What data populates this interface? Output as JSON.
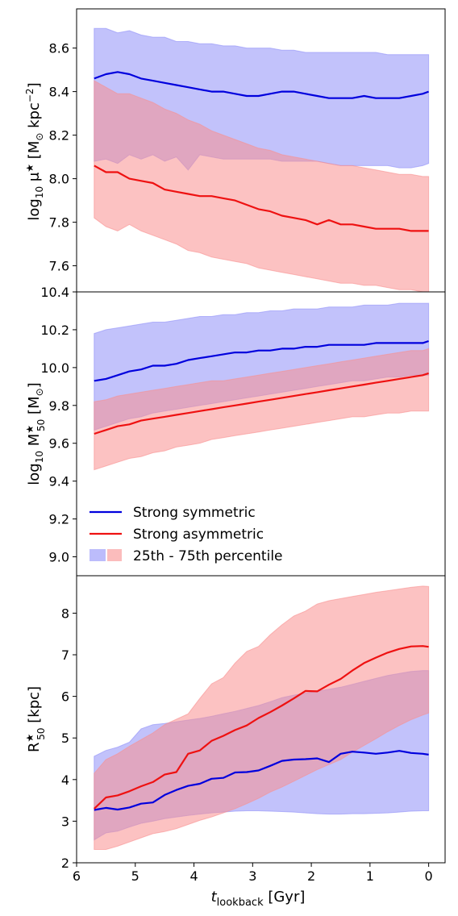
{
  "colors": {
    "symmetric": "#0000dd",
    "asymmetric": "#ee1111",
    "symmetric_band": "#8f8ff8",
    "asymmetric_band": "#f98f8f"
  },
  "legend": {
    "placement": "lower-left of middle panel",
    "entries": [
      "Strong symmetric",
      "Strong asymmetric"
    ],
    "band_label": "25th - 75th percentile"
  },
  "chart_data": [
    {
      "type": "line",
      "panel": "top",
      "ylabel": "log10 μ* [M⊙ kpc^-2]",
      "ylim": [
        7.48,
        8.78
      ],
      "yticks": [
        "7.6",
        "7.8",
        "8.0",
        "8.2",
        "8.4",
        "8.6"
      ],
      "x": [
        5.7,
        5.5,
        5.3,
        5.1,
        4.9,
        4.7,
        4.5,
        4.3,
        4.1,
        3.9,
        3.7,
        3.5,
        3.3,
        3.1,
        2.9,
        2.7,
        2.5,
        2.3,
        2.1,
        1.9,
        1.7,
        1.5,
        1.3,
        1.1,
        0.9,
        0.7,
        0.5,
        0.3,
        0.1,
        0.0
      ],
      "series": [
        {
          "name": "Strong symmetric",
          "values": [
            8.46,
            8.48,
            8.49,
            8.48,
            8.46,
            8.45,
            8.44,
            8.43,
            8.42,
            8.41,
            8.4,
            8.4,
            8.39,
            8.38,
            8.38,
            8.39,
            8.4,
            8.4,
            8.39,
            8.38,
            8.37,
            8.37,
            8.37,
            8.38,
            8.37,
            8.37,
            8.37,
            8.38,
            8.39,
            8.4
          ],
          "band_low": [
            8.08,
            8.09,
            8.07,
            8.11,
            8.09,
            8.11,
            8.08,
            8.1,
            8.04,
            8.11,
            8.1,
            8.09,
            8.09,
            8.09,
            8.09,
            8.09,
            8.08,
            8.08,
            8.08,
            8.08,
            8.07,
            8.06,
            8.06,
            8.06,
            8.06,
            8.06,
            8.05,
            8.05,
            8.06,
            8.07
          ],
          "band_high": [
            8.69,
            8.69,
            8.67,
            8.68,
            8.66,
            8.65,
            8.65,
            8.63,
            8.63,
            8.62,
            8.62,
            8.61,
            8.61,
            8.6,
            8.6,
            8.6,
            8.59,
            8.59,
            8.58,
            8.58,
            8.58,
            8.58,
            8.58,
            8.58,
            8.58,
            8.57,
            8.57,
            8.57,
            8.57,
            8.57
          ]
        },
        {
          "name": "Strong asymmetric",
          "values": [
            8.06,
            8.03,
            8.03,
            8.0,
            7.99,
            7.98,
            7.95,
            7.94,
            7.93,
            7.92,
            7.92,
            7.91,
            7.9,
            7.88,
            7.86,
            7.85,
            7.83,
            7.82,
            7.81,
            7.79,
            7.81,
            7.79,
            7.79,
            7.78,
            7.77,
            7.77,
            7.77,
            7.76,
            7.76,
            7.76
          ],
          "band_low": [
            7.82,
            7.78,
            7.76,
            7.79,
            7.76,
            7.74,
            7.72,
            7.7,
            7.67,
            7.66,
            7.64,
            7.63,
            7.62,
            7.61,
            7.59,
            7.58,
            7.57,
            7.56,
            7.55,
            7.54,
            7.53,
            7.52,
            7.52,
            7.51,
            7.51,
            7.5,
            7.49,
            7.49,
            7.48,
            7.48
          ],
          "band_high": [
            8.45,
            8.42,
            8.39,
            8.39,
            8.37,
            8.35,
            8.32,
            8.3,
            8.27,
            8.25,
            8.22,
            8.2,
            8.18,
            8.16,
            8.14,
            8.13,
            8.11,
            8.1,
            8.09,
            8.08,
            8.07,
            8.06,
            8.06,
            8.05,
            8.04,
            8.03,
            8.02,
            8.02,
            8.01,
            8.01
          ]
        }
      ]
    },
    {
      "type": "line",
      "panel": "middle",
      "ylabel": "log10 M*50 [M⊙]",
      "ylim": [
        8.9,
        10.4
      ],
      "yticks": [
        "9.0",
        "9.2",
        "9.4",
        "9.6",
        "9.8",
        "10.0",
        "10.2",
        "10.4"
      ],
      "x": [
        5.7,
        5.5,
        5.3,
        5.1,
        4.9,
        4.7,
        4.5,
        4.3,
        4.1,
        3.9,
        3.7,
        3.5,
        3.3,
        3.1,
        2.9,
        2.7,
        2.5,
        2.3,
        2.1,
        1.9,
        1.7,
        1.5,
        1.3,
        1.1,
        0.9,
        0.7,
        0.5,
        0.3,
        0.1,
        0.0
      ],
      "series": [
        {
          "name": "Strong symmetric",
          "values": [
            9.93,
            9.94,
            9.96,
            9.98,
            9.99,
            10.01,
            10.01,
            10.02,
            10.04,
            10.05,
            10.06,
            10.07,
            10.08,
            10.08,
            10.09,
            10.09,
            10.1,
            10.1,
            10.11,
            10.11,
            10.12,
            10.12,
            10.12,
            10.12,
            10.13,
            10.13,
            10.13,
            10.13,
            10.13,
            10.14
          ],
          "band_low": [
            9.67,
            9.69,
            9.71,
            9.73,
            9.74,
            9.76,
            9.77,
            9.78,
            9.79,
            9.8,
            9.81,
            9.82,
            9.83,
            9.84,
            9.85,
            9.86,
            9.87,
            9.88,
            9.89,
            9.9,
            9.91,
            9.92,
            9.93,
            9.93,
            9.94,
            9.95,
            9.95,
            9.96,
            9.96,
            9.96
          ],
          "band_high": [
            10.18,
            10.2,
            10.21,
            10.22,
            10.23,
            10.24,
            10.24,
            10.25,
            10.26,
            10.27,
            10.27,
            10.28,
            10.28,
            10.29,
            10.29,
            10.3,
            10.3,
            10.31,
            10.31,
            10.31,
            10.32,
            10.32,
            10.32,
            10.33,
            10.33,
            10.33,
            10.34,
            10.34,
            10.34,
            10.34
          ]
        },
        {
          "name": "Strong asymmetric",
          "values": [
            9.65,
            9.67,
            9.69,
            9.7,
            9.72,
            9.73,
            9.74,
            9.75,
            9.76,
            9.77,
            9.78,
            9.79,
            9.8,
            9.81,
            9.82,
            9.83,
            9.84,
            9.85,
            9.86,
            9.87,
            9.88,
            9.89,
            9.9,
            9.91,
            9.92,
            9.93,
            9.94,
            9.95,
            9.96,
            9.97
          ],
          "band_low": [
            9.46,
            9.48,
            9.5,
            9.52,
            9.53,
            9.55,
            9.56,
            9.58,
            9.59,
            9.6,
            9.62,
            9.63,
            9.64,
            9.65,
            9.66,
            9.67,
            9.68,
            9.69,
            9.7,
            9.71,
            9.72,
            9.73,
            9.74,
            9.74,
            9.75,
            9.76,
            9.76,
            9.77,
            9.77,
            9.77
          ],
          "band_high": [
            9.82,
            9.83,
            9.85,
            9.86,
            9.87,
            9.88,
            9.89,
            9.9,
            9.91,
            9.92,
            9.93,
            9.93,
            9.94,
            9.95,
            9.96,
            9.97,
            9.98,
            9.99,
            10.0,
            10.01,
            10.02,
            10.03,
            10.04,
            10.05,
            10.06,
            10.07,
            10.08,
            10.09,
            10.09,
            10.1
          ]
        }
      ]
    },
    {
      "type": "line",
      "panel": "bottom",
      "ylabel": "R*50 [kpc]",
      "xlabel": "t_lookback [Gyr]",
      "ylim": [
        2.0,
        8.9
      ],
      "xlim": [
        6.0,
        -0.28
      ],
      "yticks": [
        "2",
        "3",
        "4",
        "5",
        "6",
        "7",
        "8"
      ],
      "xticks": [
        "6",
        "5",
        "4",
        "3",
        "2",
        "1",
        "0"
      ],
      "x": [
        5.7,
        5.5,
        5.3,
        5.1,
        4.9,
        4.7,
        4.5,
        4.3,
        4.1,
        3.9,
        3.7,
        3.5,
        3.3,
        3.1,
        2.9,
        2.7,
        2.5,
        2.3,
        2.1,
        1.9,
        1.7,
        1.5,
        1.3,
        1.1,
        0.9,
        0.7,
        0.5,
        0.3,
        0.1,
        0.0
      ],
      "series": [
        {
          "name": "Strong symmetric",
          "values": [
            3.27,
            3.32,
            3.28,
            3.33,
            3.42,
            3.45,
            3.63,
            3.75,
            3.85,
            3.9,
            4.02,
            4.04,
            4.17,
            4.18,
            4.22,
            4.33,
            4.45,
            4.48,
            4.49,
            4.51,
            4.42,
            4.62,
            4.67,
            4.65,
            4.62,
            4.65,
            4.69,
            4.64,
            4.62,
            4.6
          ],
          "band_low": [
            2.55,
            2.72,
            2.76,
            2.86,
            2.95,
            3.0,
            3.06,
            3.1,
            3.14,
            3.17,
            3.2,
            3.22,
            3.24,
            3.25,
            3.25,
            3.24,
            3.23,
            3.22,
            3.2,
            3.18,
            3.17,
            3.17,
            3.18,
            3.18,
            3.19,
            3.2,
            3.22,
            3.24,
            3.25,
            3.25
          ],
          "band_high": [
            4.56,
            4.7,
            4.78,
            4.9,
            5.22,
            5.32,
            5.35,
            5.39,
            5.43,
            5.47,
            5.52,
            5.58,
            5.64,
            5.71,
            5.78,
            5.87,
            5.97,
            6.03,
            6.08,
            6.12,
            6.17,
            6.22,
            6.29,
            6.36,
            6.43,
            6.5,
            6.55,
            6.6,
            6.62,
            6.62
          ]
        },
        {
          "name": "Strong asymmetric",
          "values": [
            3.3,
            3.57,
            3.62,
            3.72,
            3.84,
            3.94,
            4.12,
            4.18,
            4.62,
            4.7,
            4.93,
            5.05,
            5.19,
            5.3,
            5.48,
            5.62,
            5.78,
            5.95,
            6.13,
            6.12,
            6.28,
            6.42,
            6.62,
            6.8,
            6.93,
            7.05,
            7.14,
            7.2,
            7.21,
            7.19
          ],
          "band_low": [
            2.32,
            2.32,
            2.4,
            2.5,
            2.6,
            2.7,
            2.75,
            2.82,
            2.92,
            3.02,
            3.1,
            3.2,
            3.3,
            3.42,
            3.55,
            3.7,
            3.82,
            3.96,
            4.1,
            4.24,
            4.36,
            4.48,
            4.66,
            4.82,
            4.98,
            5.15,
            5.3,
            5.44,
            5.55,
            5.6
          ],
          "band_high": [
            4.15,
            4.48,
            4.62,
            4.8,
            4.96,
            5.12,
            5.32,
            5.45,
            5.58,
            5.95,
            6.3,
            6.45,
            6.8,
            7.08,
            7.2,
            7.48,
            7.72,
            7.93,
            8.05,
            8.22,
            8.3,
            8.35,
            8.4,
            8.45,
            8.5,
            8.54,
            8.58,
            8.62,
            8.65,
            8.64
          ]
        }
      ]
    }
  ]
}
